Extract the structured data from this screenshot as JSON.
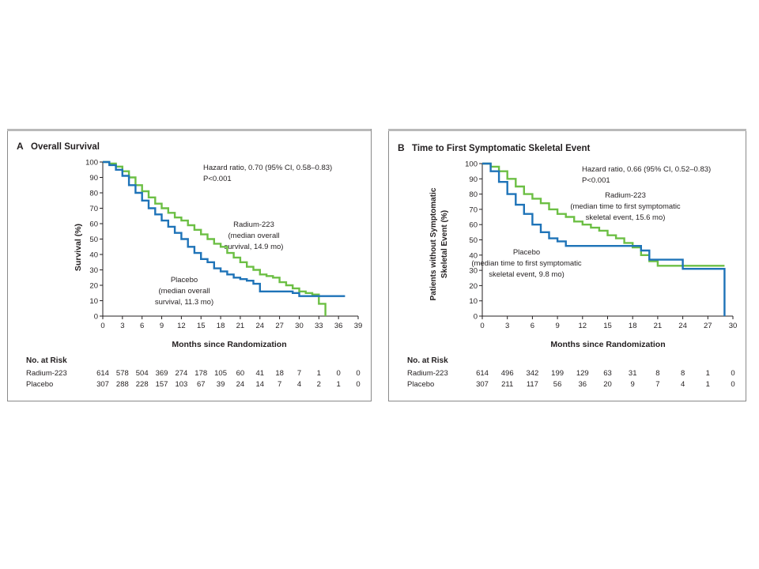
{
  "chart_data": [
    {
      "type": "line",
      "panel_letter": "A",
      "title": "Overall Survival",
      "xlabel": "Months since Randomization",
      "ylabel": "Survival (%)",
      "xlim": [
        0,
        39
      ],
      "ylim": [
        0,
        100
      ],
      "xticks": [
        0,
        3,
        6,
        9,
        12,
        15,
        18,
        21,
        24,
        27,
        30,
        33,
        36,
        39
      ],
      "yticks": [
        0,
        10,
        20,
        30,
        40,
        50,
        60,
        70,
        80,
        90,
        100
      ],
      "annotations": {
        "hazard_line1": "Hazard ratio, 0.70 (95% CI, 0.58–0.83)",
        "hazard_line2": "P<0.001",
        "radium_lines": [
          "Radium-223",
          "(median overall",
          "survival, 14.9 mo)"
        ],
        "placebo_lines": [
          "Placebo",
          "(median overall",
          "survival, 11.3 mo)"
        ]
      },
      "series": [
        {
          "name": "Radium-223",
          "color": "#6cbf44",
          "points": [
            [
              0,
              100
            ],
            [
              1,
              99
            ],
            [
              2,
              97
            ],
            [
              3,
              94
            ],
            [
              4,
              90
            ],
            [
              5,
              85
            ],
            [
              6,
              81
            ],
            [
              7,
              77
            ],
            [
              8,
              73
            ],
            [
              9,
              70
            ],
            [
              10,
              67
            ],
            [
              11,
              64
            ],
            [
              12,
              62
            ],
            [
              13,
              59
            ],
            [
              14,
              56
            ],
            [
              15,
              53
            ],
            [
              16,
              50
            ],
            [
              17,
              47
            ],
            [
              18,
              45
            ],
            [
              19,
              41
            ],
            [
              20,
              38
            ],
            [
              21,
              35
            ],
            [
              22,
              32
            ],
            [
              23,
              30
            ],
            [
              24,
              27
            ],
            [
              25,
              26
            ],
            [
              26,
              25
            ],
            [
              27,
              22
            ],
            [
              28,
              20
            ],
            [
              29,
              18
            ],
            [
              30,
              16
            ],
            [
              31,
              15
            ],
            [
              32,
              14
            ],
            [
              33,
              14
            ],
            [
              33,
              8
            ],
            [
              34,
              8
            ],
            [
              34,
              0
            ]
          ]
        },
        {
          "name": "Placebo",
          "color": "#1e73b8",
          "points": [
            [
              0,
              100
            ],
            [
              1,
              98
            ],
            [
              2,
              95
            ],
            [
              3,
              91
            ],
            [
              4,
              85
            ],
            [
              5,
              80
            ],
            [
              6,
              75
            ],
            [
              7,
              70
            ],
            [
              8,
              66
            ],
            [
              9,
              62
            ],
            [
              10,
              58
            ],
            [
              11,
              54
            ],
            [
              12,
              50
            ],
            [
              13,
              45
            ],
            [
              14,
              41
            ],
            [
              15,
              37
            ],
            [
              16,
              35
            ],
            [
              17,
              31
            ],
            [
              18,
              29
            ],
            [
              19,
              27
            ],
            [
              20,
              25
            ],
            [
              21,
              24
            ],
            [
              22,
              23
            ],
            [
              23,
              21
            ],
            [
              24,
              20
            ],
            [
              24,
              16
            ],
            [
              26,
              16
            ],
            [
              29,
              15
            ],
            [
              30,
              13
            ],
            [
              33,
              13
            ],
            [
              36,
              13
            ],
            [
              37,
              13
            ]
          ]
        }
      ],
      "risk_table": {
        "header": "No. at Risk",
        "rows": [
          {
            "label": "Radium-223",
            "values": [
              614,
              578,
              504,
              369,
              274,
              178,
              105,
              60,
              41,
              18,
              7,
              1,
              0,
              0
            ]
          },
          {
            "label": "Placebo",
            "values": [
              307,
              288,
              228,
              157,
              103,
              67,
              39,
              24,
              14,
              7,
              4,
              2,
              1,
              0
            ]
          }
        ]
      }
    },
    {
      "type": "line",
      "panel_letter": "B",
      "title": "Time to First Symptomatic Skeletal Event",
      "xlabel": "Months since Randomization",
      "ylabel": "Patients without Symptomatic Skeletal Event (%)",
      "ylabel_lines": [
        "Patients without Symptomatic",
        "Skeletal Event (%)"
      ],
      "xlim": [
        0,
        30
      ],
      "ylim": [
        0,
        100
      ],
      "xticks": [
        0,
        3,
        6,
        9,
        12,
        15,
        18,
        21,
        24,
        27,
        30
      ],
      "yticks": [
        0,
        10,
        20,
        30,
        40,
        50,
        60,
        70,
        80,
        90,
        100
      ],
      "annotations": {
        "hazard_line1": "Hazard ratio, 0.66 (95% CI, 0.52–0.83)",
        "hazard_line2": "P<0.001",
        "radium_lines": [
          "Radium-223",
          "(median time to first symptomatic",
          "skeletal event, 15.6 mo)"
        ],
        "placebo_lines": [
          "Placebo",
          "(median time to first symptomatic",
          "skeletal event, 9.8 mo)"
        ]
      },
      "series": [
        {
          "name": "Radium-223",
          "color": "#6cbf44",
          "points": [
            [
              0,
              100
            ],
            [
              1,
              98
            ],
            [
              2,
              95
            ],
            [
              3,
              90
            ],
            [
              4,
              85
            ],
            [
              5,
              80
            ],
            [
              6,
              77
            ],
            [
              7,
              74
            ],
            [
              8,
              70
            ],
            [
              9,
              67
            ],
            [
              10,
              65
            ],
            [
              11,
              62
            ],
            [
              12,
              60
            ],
            [
              13,
              58
            ],
            [
              14,
              56
            ],
            [
              15,
              53
            ],
            [
              16,
              51
            ],
            [
              17,
              48
            ],
            [
              18,
              45
            ],
            [
              19,
              40
            ],
            [
              20,
              36
            ],
            [
              21,
              33
            ],
            [
              23,
              33
            ],
            [
              25,
              33
            ],
            [
              29,
              33
            ]
          ]
        },
        {
          "name": "Placebo",
          "color": "#1e73b8",
          "points": [
            [
              0,
              100
            ],
            [
              1,
              95
            ],
            [
              2,
              88
            ],
            [
              3,
              80
            ],
            [
              4,
              73
            ],
            [
              5,
              67
            ],
            [
              6,
              60
            ],
            [
              7,
              55
            ],
            [
              8,
              51
            ],
            [
              9,
              49
            ],
            [
              10,
              46
            ],
            [
              11,
              46
            ],
            [
              13,
              46
            ],
            [
              17,
              46
            ],
            [
              19,
              43
            ],
            [
              20,
              43
            ],
            [
              20,
              37
            ],
            [
              22,
              37
            ],
            [
              24,
              37
            ],
            [
              24,
              31
            ],
            [
              27,
              31
            ],
            [
              29,
              31
            ],
            [
              29,
              0
            ]
          ]
        }
      ],
      "risk_table": {
        "header": "No. at Risk",
        "rows": [
          {
            "label": "Radium-223",
            "values": [
              614,
              496,
              342,
              199,
              129,
              63,
              31,
              8,
              8,
              1,
              0
            ]
          },
          {
            "label": "Placebo",
            "values": [
              307,
              211,
              117,
              56,
              36,
              20,
              9,
              7,
              4,
              1,
              0
            ]
          }
        ]
      }
    }
  ]
}
